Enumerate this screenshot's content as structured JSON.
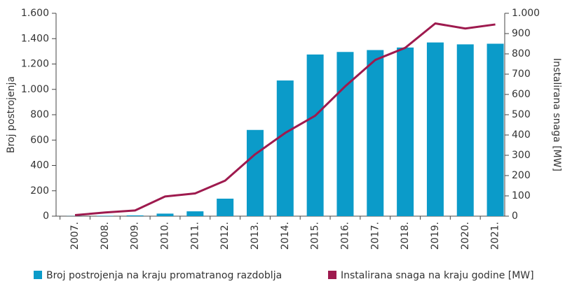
{
  "chart_data": {
    "type": "bar_line",
    "categories": [
      "2007.",
      "2008.",
      "2009.",
      "2010.",
      "2011.",
      "2012.",
      "2013.",
      "2014.",
      "2015.",
      "2016.",
      "2017.",
      "2018.",
      "2019.",
      "2020.",
      "2021."
    ],
    "series": [
      {
        "name": "Broj postrojenja na kraju promatranog razdoblja",
        "color": "#0b9bc9",
        "type": "bar",
        "axis": "y",
        "values": [
          1,
          3,
          6,
          20,
          38,
          138,
          680,
          1070,
          1275,
          1295,
          1310,
          1330,
          1370,
          1355,
          1360
        ]
      },
      {
        "name": "Instalirana snaga na kraju godine [MW]",
        "color": "#9e1a4e",
        "type": "line",
        "axis": "y2",
        "values": [
          5,
          18,
          28,
          97,
          112,
          175,
          305,
          410,
          495,
          640,
          770,
          830,
          950,
          925,
          945
        ]
      }
    ],
    "ylabel": "Broj postrojenja",
    "y2label": "Instalirana snaga [MW]",
    "ylim": [
      0,
      1600
    ],
    "yticks": [
      0,
      200,
      400,
      600,
      800,
      {
        "value": 1000,
        "label": "1.000"
      },
      {
        "value": 1200,
        "label": "1.200"
      },
      {
        "value": 1400,
        "label": "1.400"
      },
      {
        "value": 1600,
        "label": "1.600"
      }
    ],
    "y2lim": [
      0,
      1000
    ],
    "y2ticks": [
      0,
      100,
      200,
      300,
      400,
      500,
      600,
      700,
      800,
      900,
      {
        "value": 1000,
        "label": "1.000"
      }
    ],
    "legend": "bottom"
  }
}
